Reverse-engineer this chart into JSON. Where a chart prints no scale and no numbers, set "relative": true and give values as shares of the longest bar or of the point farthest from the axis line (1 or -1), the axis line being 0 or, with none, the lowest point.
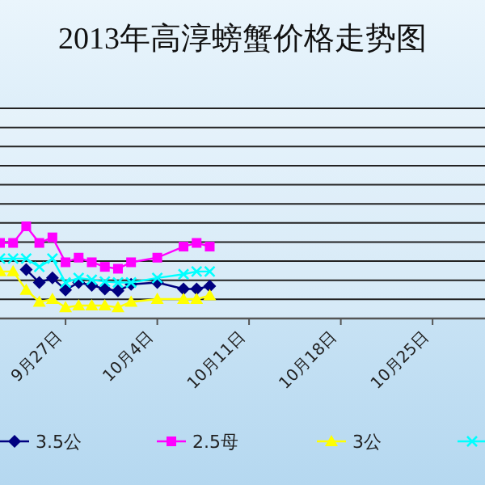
{
  "chart_data": {
    "type": "line",
    "title": "2013年高淳螃蟹价格走势图",
    "relative": true,
    "grid": "y",
    "legend": "bottom",
    "x": [
      "--09-22",
      "--09-23",
      "--09-24",
      "--09-25",
      "--09-26",
      "--09-27",
      "--09-28",
      "--09-29",
      "--09-30",
      "--10-01",
      "--10-02",
      "--10-04",
      "--10-06",
      "--10-07",
      "--10-08"
    ],
    "xlim": [
      "--09-22",
      "--10-29"
    ],
    "xticks": [
      {
        "value": "--09-27",
        "label": "9月27日"
      },
      {
        "value": "--10-04",
        "label": "10月4日"
      },
      {
        "value": "--10-11",
        "label": "10月11日"
      },
      {
        "value": "--10-18",
        "label": "10月18日"
      },
      {
        "value": "--10-25",
        "label": "10月25日"
      }
    ],
    "series": [
      {
        "name": "3.5公",
        "color": "#000080",
        "marker": "diamond",
        "values": [
          null,
          null,
          0.53,
          0.39,
          0.44,
          0.31,
          0.39,
          0.36,
          0.32,
          0.3,
          0.37,
          0.39,
          0.32,
          0.32,
          0.35
        ]
      },
      {
        "name": "2.5母",
        "color": "#ff00ff",
        "marker": "square",
        "values": [
          0.82,
          0.82,
          1.0,
          0.82,
          0.88,
          0.61,
          0.66,
          0.61,
          0.56,
          0.54,
          0.61,
          0.66,
          0.78,
          0.82,
          0.78
        ]
      },
      {
        "name": "3公",
        "color": "#ffff00",
        "marker": "triangle",
        "values": [
          0.51,
          0.51,
          0.31,
          0.18,
          0.21,
          0.12,
          0.14,
          0.14,
          0.14,
          0.12,
          0.18,
          0.21,
          0.21,
          0.21,
          0.25
        ]
      },
      {
        "color": "#00ffff",
        "marker": "cross",
        "values": [
          0.65,
          0.65,
          0.65,
          0.56,
          0.65,
          0.39,
          0.44,
          0.42,
          0.4,
          0.39,
          0.39,
          0.44,
          0.48,
          0.51,
          0.51
        ]
      }
    ]
  }
}
